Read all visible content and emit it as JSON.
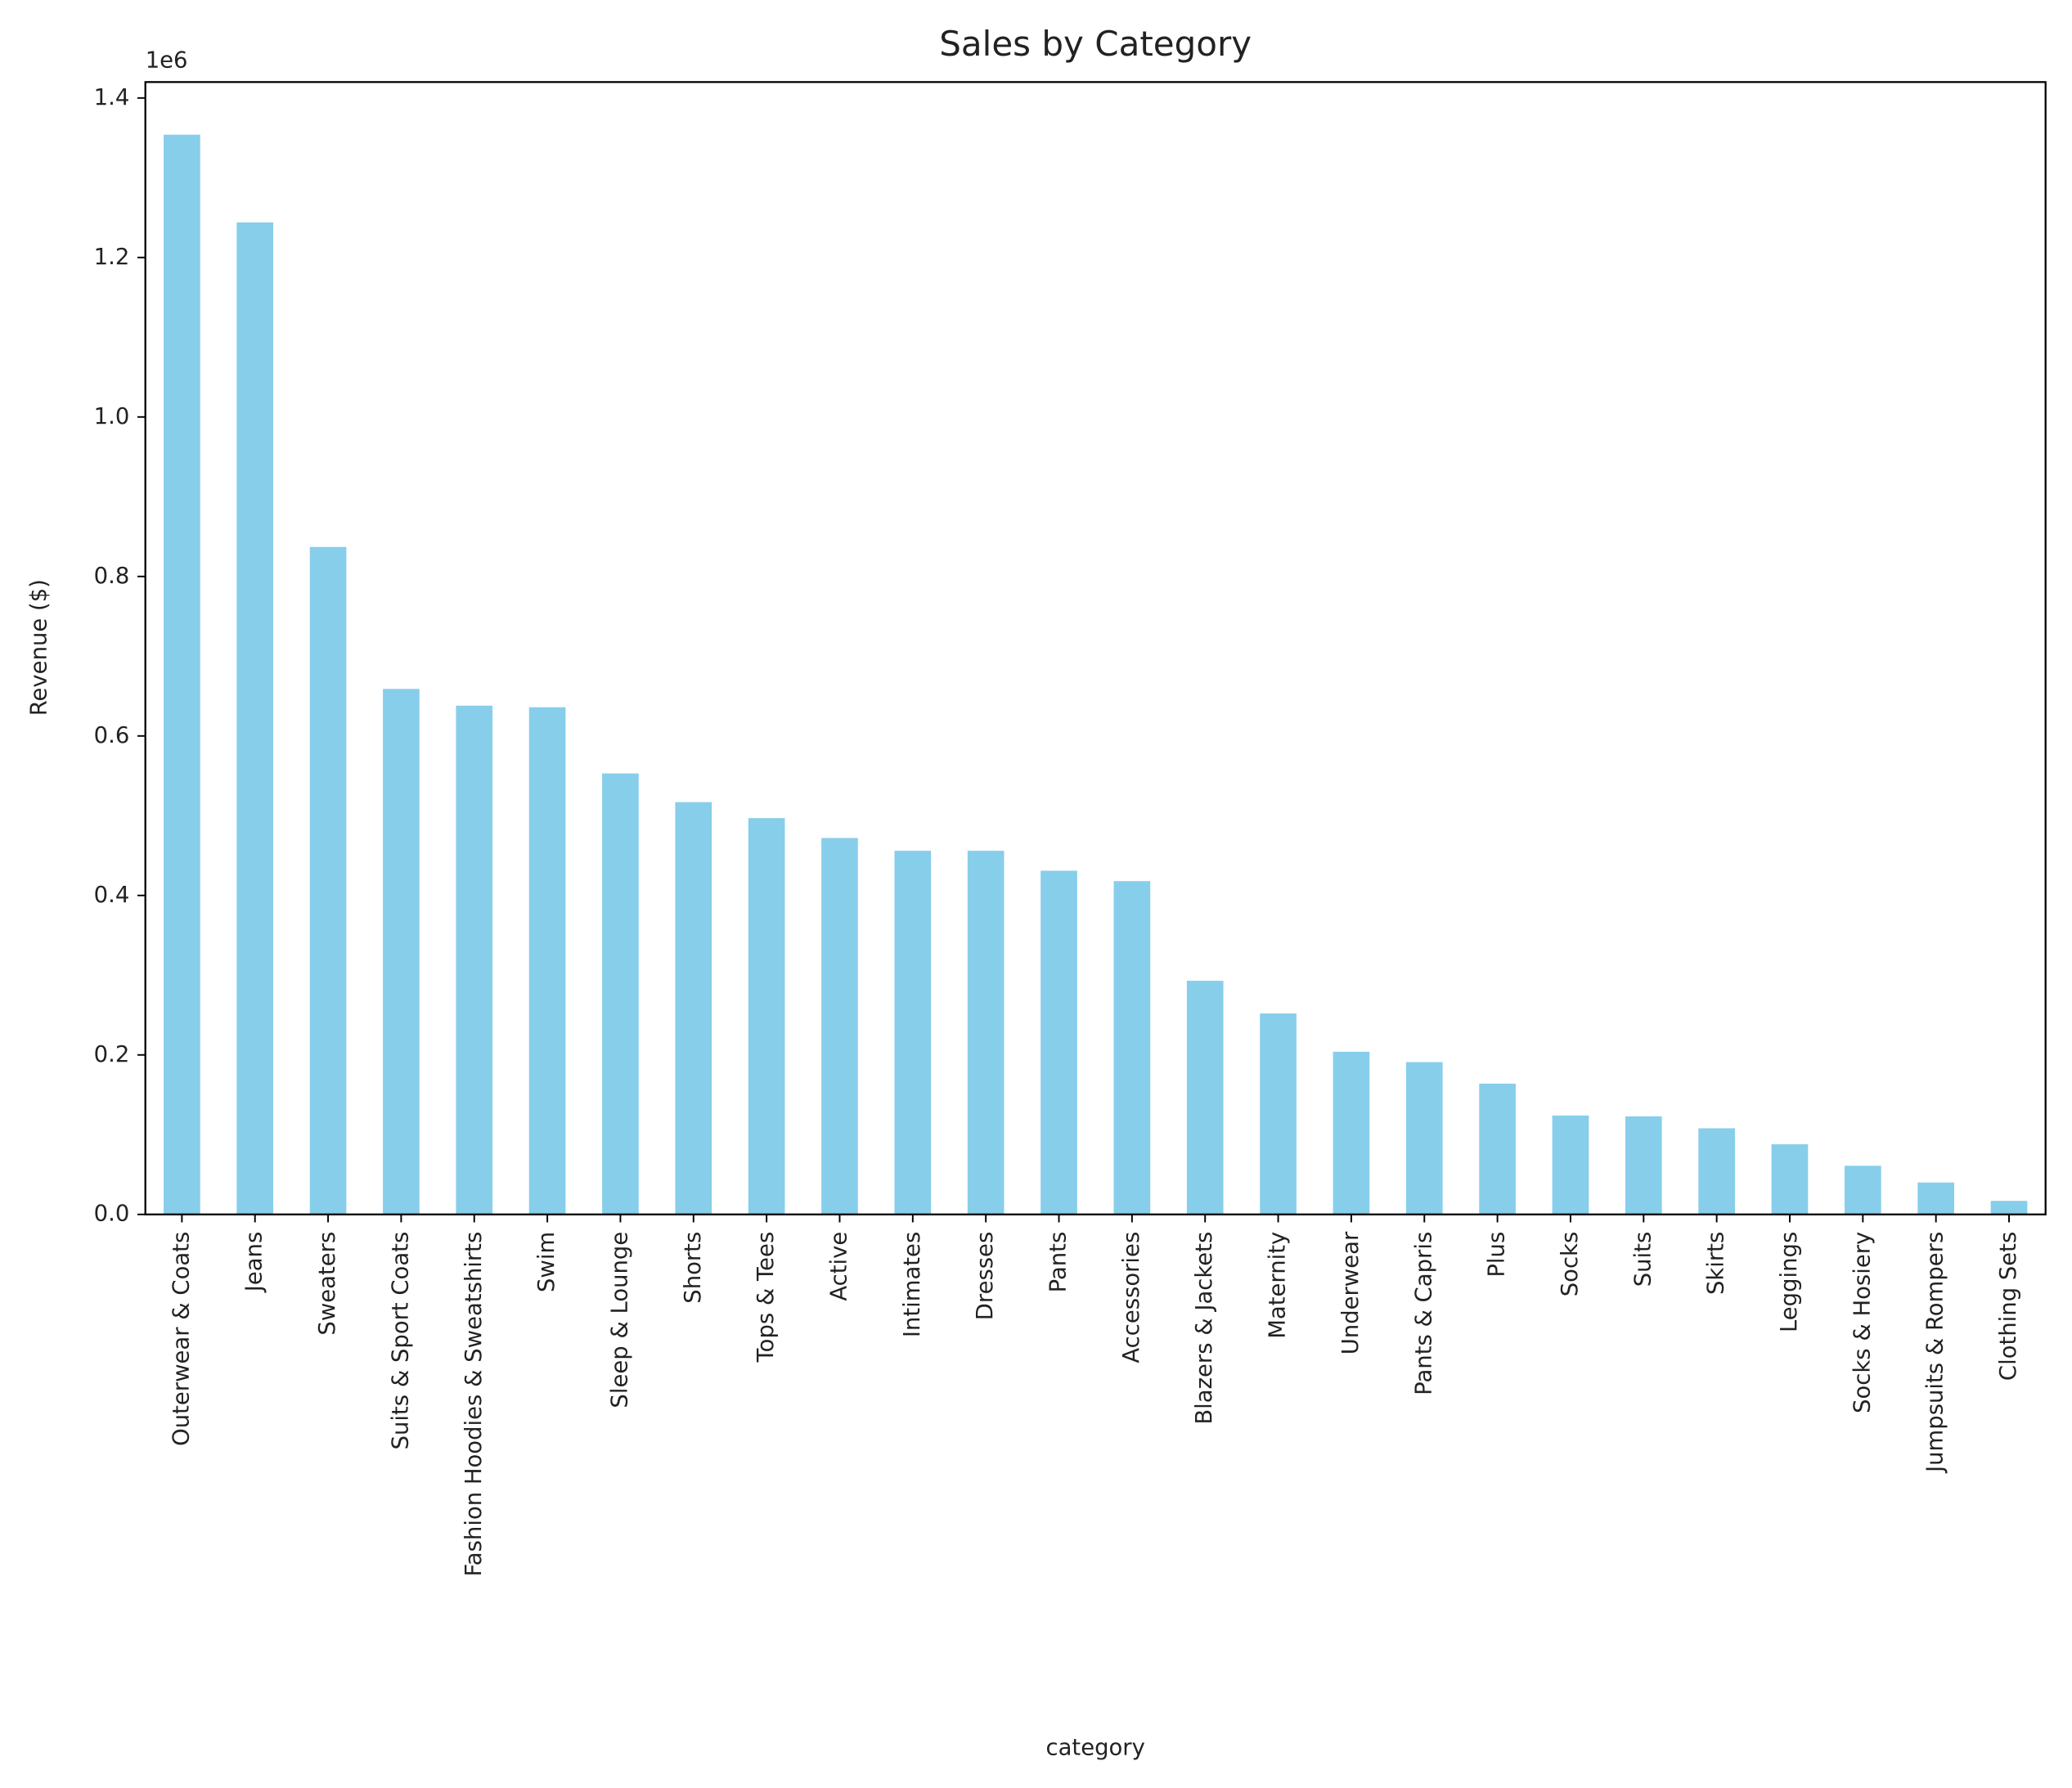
{
  "chart_data": {
    "type": "bar",
    "title": "Sales by Category",
    "x_label": "category",
    "y_label": "Revenue ($)",
    "y_offset_label": "1e6",
    "categories": [
      "Outerwear & Coats",
      "Jeans",
      "Sweaters",
      "Suits & Sport Coats",
      "Fashion Hoodies & Sweatshirts",
      "Swim",
      "Sleep & Lounge",
      "Shorts",
      "Tops & Tees",
      "Active",
      "Intimates",
      "Dresses",
      "Pants",
      "Accessories",
      "Blazers & Jackets",
      "Maternity",
      "Underwear",
      "Pants & Capris",
      "Plus",
      "Socks",
      "Suits",
      "Skirts",
      "Leggings",
      "Socks & Hosiery",
      "Jumpsuits & Rompers",
      "Clothing Sets"
    ],
    "values": [
      1.354,
      1.244,
      0.837,
      0.659,
      0.638,
      0.636,
      0.553,
      0.517,
      0.497,
      0.472,
      0.456,
      0.456,
      0.431,
      0.418,
      0.293,
      0.252,
      0.204,
      0.191,
      0.164,
      0.124,
      0.123,
      0.108,
      0.088,
      0.061,
      0.04,
      0.017
    ],
    "color": "#87ceeb",
    "ylim": [
      0,
      1.42
    ],
    "yticks": [
      {
        "value": 0,
        "label": "0.0"
      },
      0.2,
      0.4,
      0.6,
      0.8,
      {
        "value": 1,
        "label": "1.0"
      },
      1.2,
      1.4
    ],
    "grid": false
  }
}
